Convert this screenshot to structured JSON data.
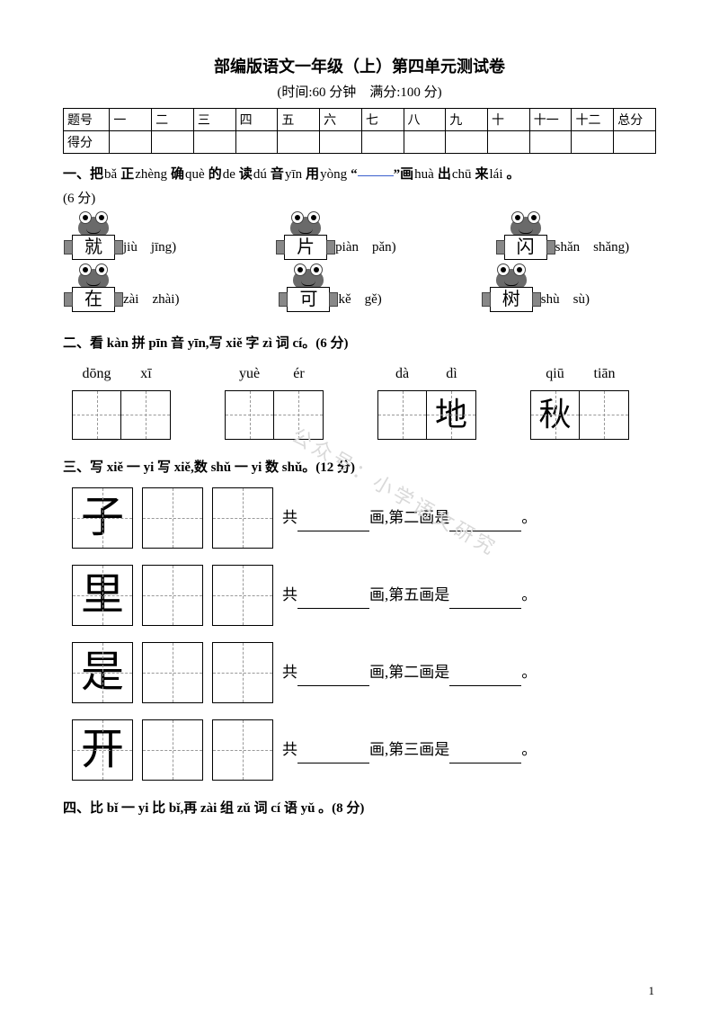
{
  "title": "部编版语文一年级（上）第四单元测试卷",
  "subtitle": "(时间:60 分钟　满分:100 分)",
  "score_table": {
    "row1_label": "题号",
    "row2_label": "得分",
    "cols": [
      "一",
      "二",
      "三",
      "四",
      "五",
      "六",
      "七",
      "八",
      "九",
      "十",
      "十一",
      "十二",
      "总分"
    ]
  },
  "q1": {
    "head_parts": [
      "一、把",
      "bǎ",
      "正",
      "zhèng",
      "确",
      "què",
      "的",
      "de",
      "读",
      "dú",
      "音",
      "yīn",
      "用",
      "yòng",
      "“",
      "”画",
      "huà",
      "出",
      "chū",
      "来",
      "lái",
      "。"
    ],
    "points": "(6 分)",
    "items": [
      {
        "char": "就",
        "opts": "(jiù　jīng)"
      },
      {
        "char": "片",
        "opts": "(piàn　pǎn)"
      },
      {
        "char": "闪",
        "opts": "(shǎn　shǎng)"
      },
      {
        "char": "在",
        "opts": "(zài　zhài)"
      },
      {
        "char": "可",
        "opts": "(kě　gě)"
      },
      {
        "char": "树",
        "opts": "(shù　sù)"
      }
    ]
  },
  "q2": {
    "head": "二、看 kàn 拼 pīn 音 yīn,写 xiě 字 zì 词 cí。(6 分)",
    "groups": [
      {
        "p": [
          "dōng",
          "xī"
        ],
        "fill": [
          "",
          ""
        ]
      },
      {
        "p": [
          "yuè",
          "ér"
        ],
        "fill": [
          "",
          ""
        ]
      },
      {
        "p": [
          "dà",
          "dì"
        ],
        "fill": [
          "",
          "地"
        ]
      },
      {
        "p": [
          "qiū",
          "tiān"
        ],
        "fill": [
          "秋",
          ""
        ]
      }
    ]
  },
  "q3": {
    "head": "三、写 xiě 一 yi 写 xiě,数 shǔ 一 yi 数 shǔ。(12 分)",
    "rows": [
      {
        "char": "子",
        "label1": "共",
        "label2": "画,第二画是",
        "end": "。"
      },
      {
        "char": "里",
        "label1": "共",
        "label2": "画,第五画是",
        "end": "。"
      },
      {
        "char": "是",
        "label1": "共",
        "label2": "画,第二画是",
        "end": "。"
      },
      {
        "char": "开",
        "label1": "共",
        "label2": "画,第三画是",
        "end": "。"
      }
    ]
  },
  "q4": {
    "head": "四、比 bǐ 一 yi 比 bǐ,再 zài 组 zǔ 词 cí 语 yǔ 。(8 分)"
  },
  "watermark": "公众号：小学语文研究",
  "page_number": "1"
}
